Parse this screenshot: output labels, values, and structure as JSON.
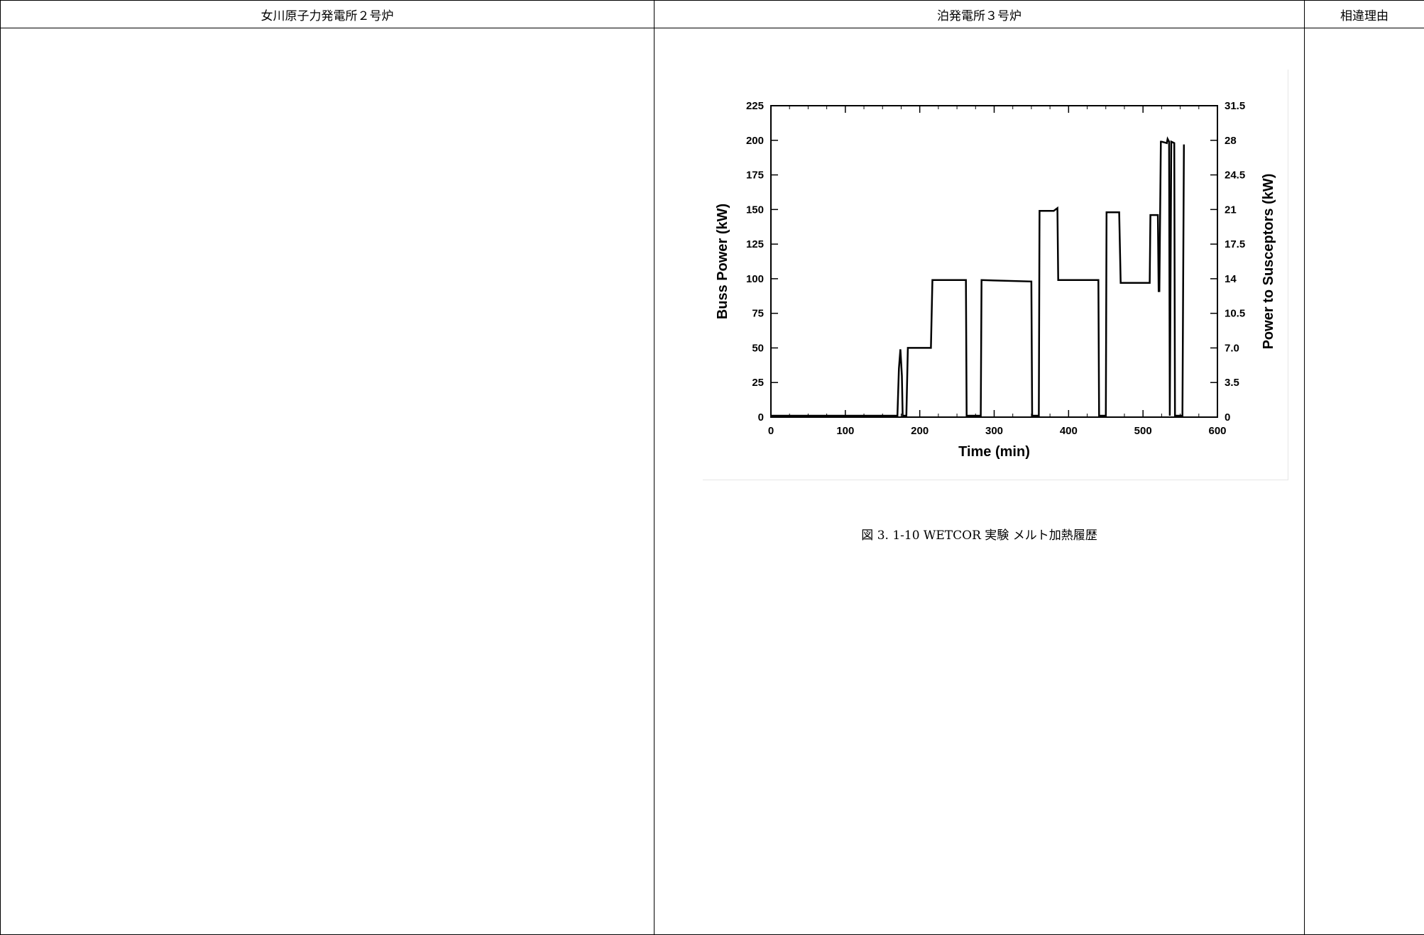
{
  "table": {
    "headers": [
      "女川原子力発電所２号炉",
      "泊発電所３号炉",
      "相違理由"
    ]
  },
  "figure": {
    "caption": "図 3. 1-10 WETCOR 実験 メルト加熱履歴"
  },
  "chart_data": {
    "type": "line",
    "xlabel": "Time (min)",
    "ylabel": "Buss Power (kW)",
    "y2label": "Power to Susceptors (kW)",
    "xlim": [
      0,
      600
    ],
    "ylim": [
      0,
      225
    ],
    "y2lim": [
      0,
      31.5
    ],
    "xticks": [
      "0",
      "100",
      "200",
      "300",
      "400",
      "500",
      "600"
    ],
    "yticks": [
      "0",
      "25",
      "50",
      "75",
      "100",
      "125",
      "150",
      "175",
      "200",
      "225"
    ],
    "y2ticks": [
      "0",
      "3.5",
      "7.0",
      "10.5",
      "14",
      "17.5",
      "21",
      "24.5",
      "28",
      "31.5"
    ],
    "grid": false,
    "series": [
      {
        "x": [
          0,
          170,
          172,
          174,
          176,
          177,
          178,
          182,
          184,
          215,
          217,
          262,
          263,
          282,
          283,
          350,
          351,
          360,
          361,
          380,
          385,
          386,
          440,
          441,
          450,
          451,
          468,
          470,
          509,
          510,
          520,
          521,
          522,
          524,
          525,
          532,
          533,
          535,
          536,
          538,
          542,
          543,
          553,
          555
        ],
        "y": [
          1,
          1,
          35,
          49,
          30,
          1,
          1,
          1,
          50,
          50,
          99,
          99,
          1,
          1,
          99,
          98,
          1,
          1,
          149,
          149,
          151,
          99,
          99,
          1,
          1,
          148,
          148,
          97,
          97,
          146,
          146,
          91,
          91,
          199,
          199,
          198,
          201,
          199,
          1,
          199,
          198,
          1,
          1,
          197
        ]
      }
    ]
  }
}
